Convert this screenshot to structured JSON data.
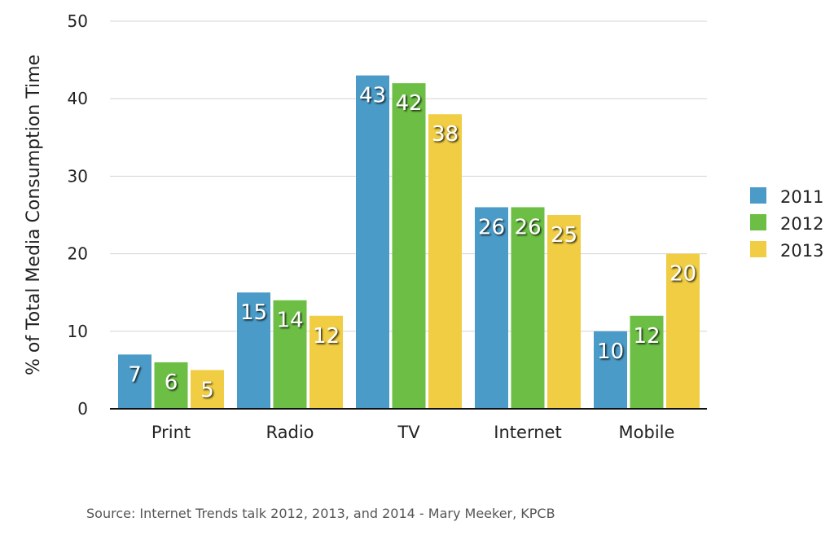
{
  "chart_data": {
    "type": "bar",
    "categories": [
      "Print",
      "Radio",
      "TV",
      "Internet",
      "Mobile"
    ],
    "series": [
      {
        "name": "2011",
        "color": "#4a9bc7",
        "values": [
          7,
          15,
          43,
          26,
          10
        ]
      },
      {
        "name": "2012",
        "color": "#6cbf44",
        "values": [
          6,
          14,
          42,
          26,
          12
        ]
      },
      {
        "name": "2013",
        "color": "#f0cd43",
        "values": [
          5,
          12,
          38,
          25,
          20
        ]
      }
    ],
    "title": "",
    "xlabel": "",
    "ylabel": "% of Total Media Consumption Time",
    "ylim": [
      0,
      50
    ],
    "yticks": [
      0,
      10,
      20,
      30,
      40,
      50
    ],
    "grid": true,
    "legend": "right",
    "data_labels": true,
    "source": "Source: Internet Trends talk 2012, 2013, and 2014 - Mary Meeker, KPCB"
  }
}
